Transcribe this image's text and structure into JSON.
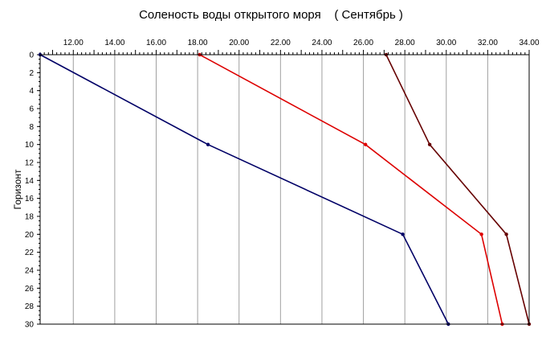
{
  "chart_data": {
    "type": "line",
    "title": "Соленость воды открытого моря    ( Сентябрь )",
    "xlabel": "",
    "ylabel": "Горизонт",
    "x_axis_position": "top",
    "y_axis_inverted": true,
    "xlim": [
      10.4,
      34.0
    ],
    "ylim": [
      0,
      30
    ],
    "x_ticks": [
      "12.00",
      "14.00",
      "16.00",
      "18.00",
      "20.00",
      "22.00",
      "24.00",
      "26.00",
      "28.00",
      "30.00",
      "32.00",
      "34.00"
    ],
    "x_tick_values": [
      12,
      14,
      16,
      18,
      20,
      22,
      24,
      26,
      28,
      30,
      32,
      34
    ],
    "y_ticks": [
      "0",
      "2",
      "4",
      "6",
      "8",
      "10",
      "12",
      "14",
      "16",
      "18",
      "20",
      "22",
      "24",
      "26",
      "28",
      "30"
    ],
    "y_tick_values": [
      0,
      2,
      4,
      6,
      8,
      10,
      12,
      14,
      16,
      18,
      20,
      22,
      24,
      26,
      28,
      30
    ],
    "grid": true,
    "series": [
      {
        "color": "#000066",
        "points": [
          [
            10.4,
            0
          ],
          [
            18.5,
            10
          ],
          [
            27.9,
            20
          ],
          [
            30.1,
            30
          ]
        ]
      },
      {
        "color": "#dd0000",
        "points": [
          [
            18.1,
            0
          ],
          [
            26.1,
            10
          ],
          [
            31.7,
            20
          ],
          [
            32.7,
            30
          ]
        ]
      },
      {
        "color": "#660000",
        "points": [
          [
            27.1,
            0
          ],
          [
            29.2,
            10
          ],
          [
            32.9,
            20
          ],
          [
            34.0,
            30
          ]
        ]
      }
    ]
  }
}
